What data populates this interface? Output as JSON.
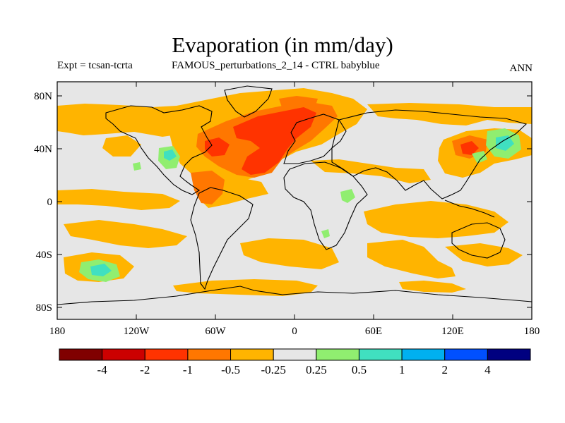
{
  "title": "Evaporation (in mm/day)",
  "subtitle_left": "Expt = tcsan-tcrta",
  "subtitle_center": "FAMOUS_perturbations_2_14 - CTRL babyblue",
  "subtitle_right": "ANN",
  "lat_ticks": [
    "80N",
    "40N",
    "0",
    "40S",
    "80S"
  ],
  "lon_ticks": [
    "180",
    "120W",
    "60W",
    "0",
    "60E",
    "120E",
    "180"
  ],
  "colorbar": {
    "labels": [
      "-4",
      "-2",
      "-1",
      "-0.5",
      "-0.25",
      "0.25",
      "0.5",
      "1",
      "2",
      "4"
    ],
    "colors": [
      "#800000",
      "#cc0000",
      "#ff3300",
      "#ff7700",
      "#ffb400",
      "#e6e6e6",
      "#90ee70",
      "#40e0c0",
      "#00b0f0",
      "#0050ff",
      "#000080"
    ]
  },
  "map_colors": {
    "background": "#e6e6e6",
    "level_neg_0_25": "#ffb400",
    "level_neg_0_5": "#ff7700",
    "level_neg_1": "#ff3300",
    "level_pos_0_25": "#90ee70",
    "level_pos_0_5": "#40e0c0",
    "coastline": "#000000"
  }
}
